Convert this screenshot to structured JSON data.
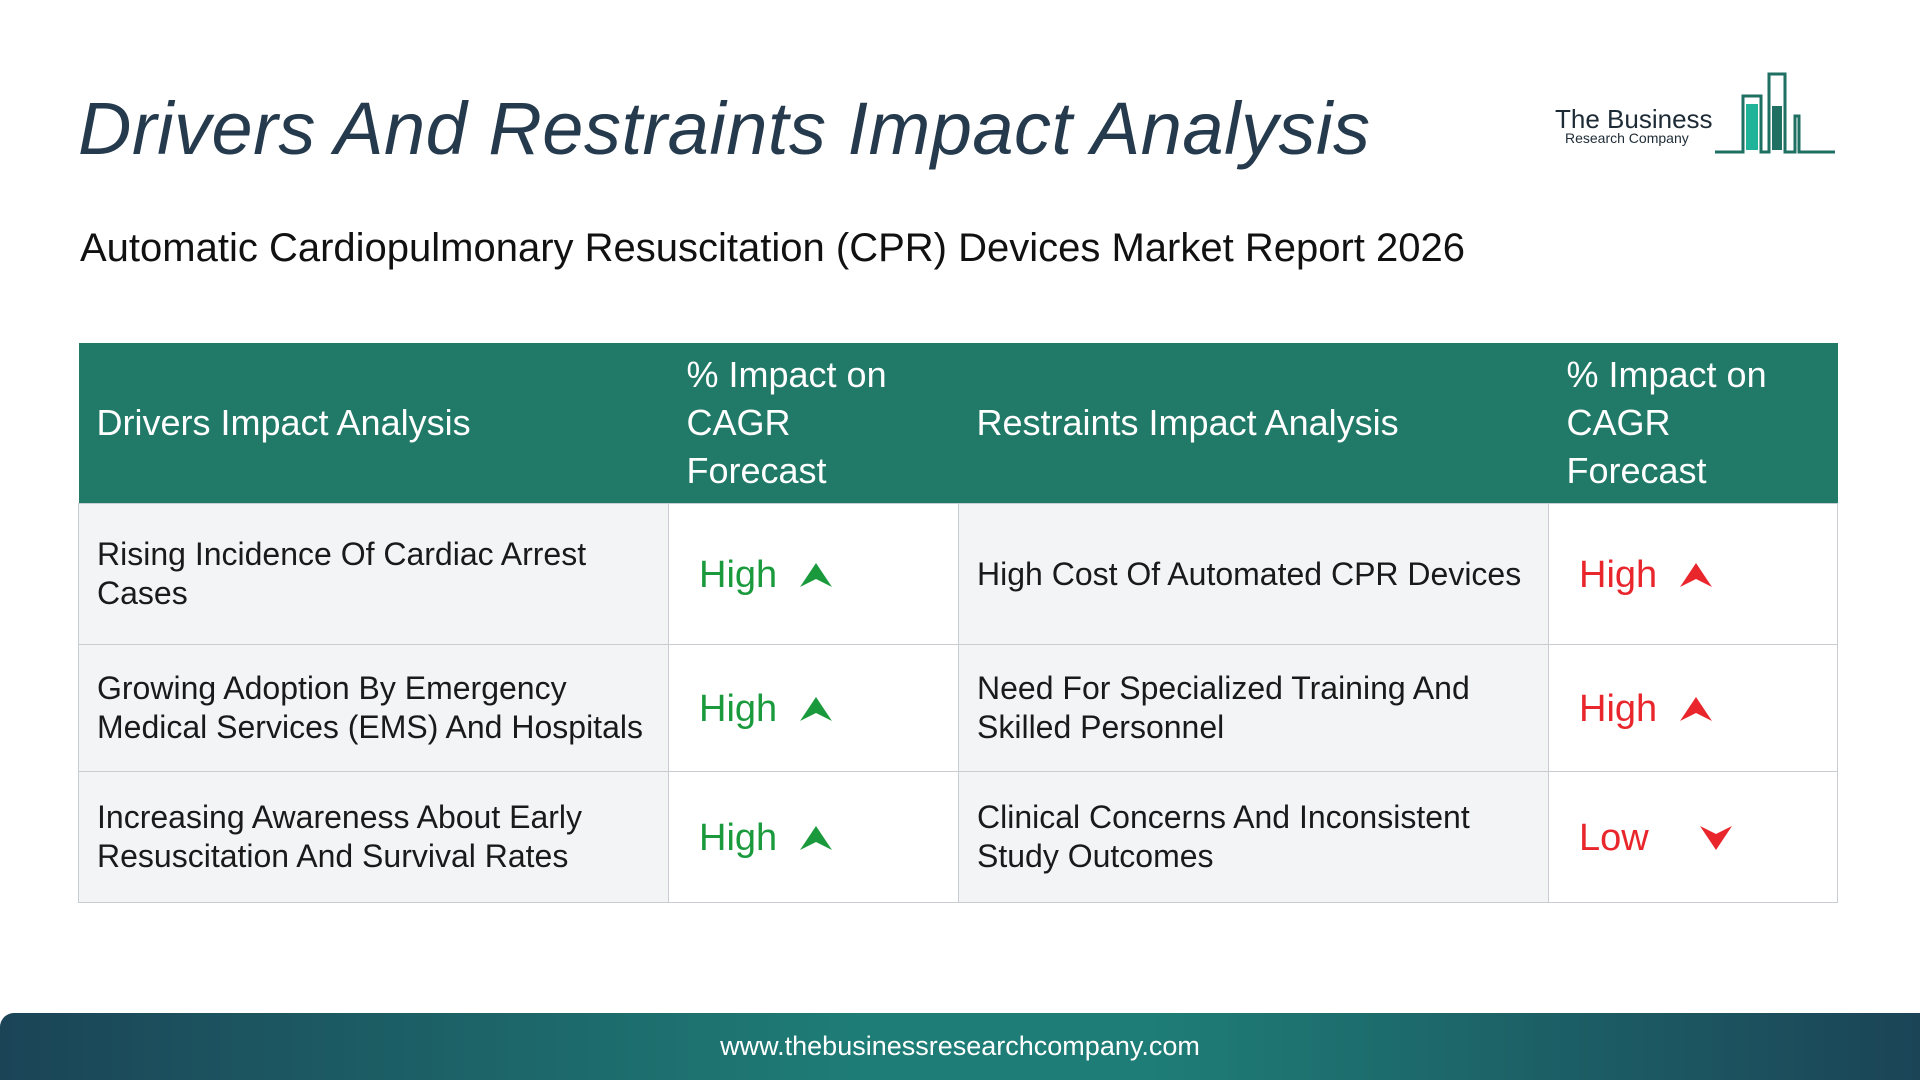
{
  "title": "Drivers And Restraints Impact Analysis",
  "subtitle": "Automatic Cardiopulmonary Resuscitation (CPR) Devices Market Report 2026",
  "logo": {
    "name": "The Business",
    "sub": "Research Company",
    "icon": "bar-chart-building-icon"
  },
  "table": {
    "headers": {
      "drivers": "Drivers Impact Analysis",
      "drivers_impact": "% Impact on CAGR Forecast",
      "restraints": "Restraints Impact Analysis",
      "restraints_impact": "% Impact on CAGR Forecast"
    },
    "rows": [
      {
        "driver": "Rising Incidence Of Cardiac Arrest Cases",
        "driver_impact": "High",
        "restraint": "High Cost Of Automated CPR Devices",
        "restraint_impact": "High"
      },
      {
        "driver": "Growing Adoption By Emergency Medical Services (EMS) And Hospitals",
        "driver_impact": "High",
        "restraint": "Need For Specialized Training And Skilled Personnel",
        "restraint_impact": "High"
      },
      {
        "driver": "Increasing Awareness About Early Resuscitation And Survival Rates",
        "driver_impact": "High",
        "restraint": "Clinical Concerns And Inconsistent Study Outcomes",
        "restraint_impact": "Low"
      }
    ]
  },
  "colors": {
    "header_bg": "#217967",
    "title": "#253a4c",
    "positive": "#1a9a3c",
    "negative": "#e8262c"
  },
  "footer": {
    "url": "www.thebusinessresearchcompany.com"
  }
}
